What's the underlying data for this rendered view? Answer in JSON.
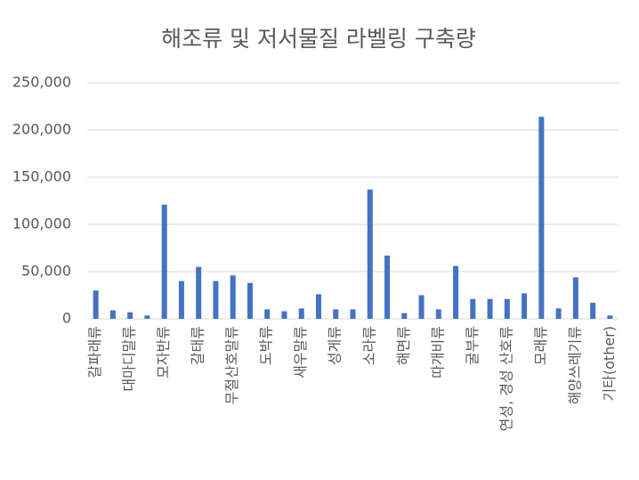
{
  "chart_data": {
    "type": "bar",
    "title": "해조류 및 저서물질 라벨링 구축량",
    "categories": [
      "갈파래류",
      null,
      "대마디말류",
      null,
      "모자반류",
      null,
      "갈태류",
      null,
      "무절산호말류",
      null,
      "도박류",
      null,
      "새우말류",
      null,
      "성게류",
      null,
      "소라류",
      null,
      "해면류",
      null,
      "따개비류",
      null,
      "굴부류",
      null,
      "연성, 경성 산호류",
      null,
      "모래류",
      null,
      "해양쓰레기류",
      null,
      "기타(other)"
    ],
    "values": [
      30000,
      9000,
      7000,
      3500,
      121000,
      40000,
      55000,
      40000,
      46000,
      38000,
      10000,
      8000,
      11000,
      26000,
      10000,
      10000,
      137000,
      67000,
      6000,
      25000,
      10000,
      56000,
      21000,
      21000,
      21000,
      27000,
      214000,
      11000,
      44000,
      17000,
      3500
    ],
    "color": "#4472c4",
    "ylim": [
      0,
      250000
    ],
    "yticks": [
      0,
      {
        "value": 50000,
        "label": "50,000"
      },
      {
        "value": 100000,
        "label": "100,000"
      },
      {
        "value": 150000,
        "label": "150,000"
      },
      {
        "value": 200000,
        "label": "200,000"
      },
      {
        "value": 250000,
        "label": "250,000"
      }
    ],
    "grid": true
  }
}
